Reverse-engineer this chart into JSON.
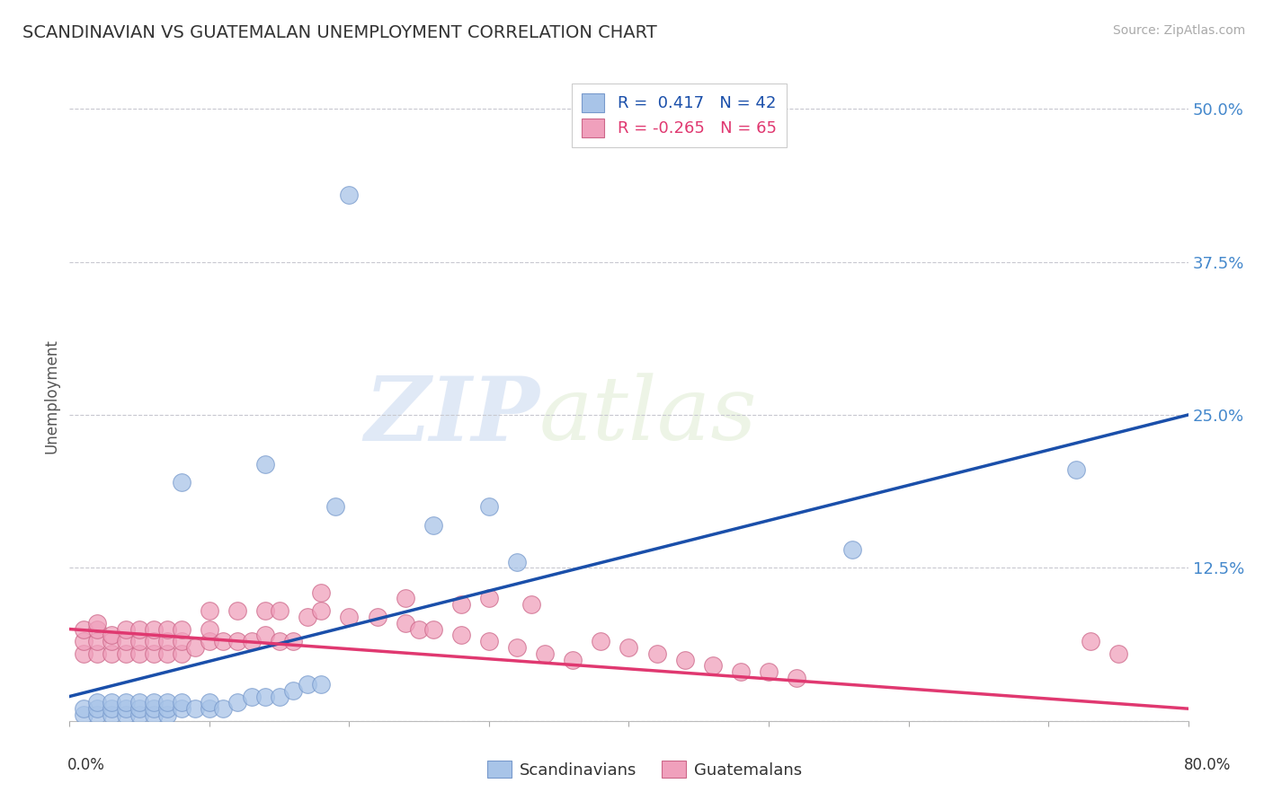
{
  "title": "SCANDINAVIAN VS GUATEMALAN UNEMPLOYMENT CORRELATION CHART",
  "source_text": "Source: ZipAtlas.com",
  "ylabel": "Unemployment",
  "xmin": 0.0,
  "xmax": 0.8,
  "ymin": 0.0,
  "ymax": 0.53,
  "yticks": [
    0.0,
    0.125,
    0.25,
    0.375,
    0.5
  ],
  "ytick_labels": [
    "",
    "12.5%",
    "25.0%",
    "37.5%",
    "50.0%"
  ],
  "grid_color": "#c8c8d0",
  "background_color": "#ffffff",
  "scandinavian_color": "#a8c4e8",
  "guatemalan_color": "#f0a0bc",
  "blue_line_color": "#1a4faa",
  "pink_line_color": "#e03870",
  "blue_R": 0.417,
  "blue_N": 42,
  "pink_R": -0.265,
  "pink_N": 65,
  "watermark_zip": "ZIP",
  "watermark_atlas": "atlas",
  "blue_line_x0": 0.0,
  "blue_line_y0": 0.02,
  "blue_line_x1": 0.8,
  "blue_line_y1": 0.25,
  "pink_line_x0": 0.0,
  "pink_line_y0": 0.075,
  "pink_line_x1": 0.8,
  "pink_line_y1": 0.01,
  "scandinavian_points": [
    [
      0.01,
      0.005
    ],
    [
      0.01,
      0.01
    ],
    [
      0.02,
      0.005
    ],
    [
      0.02,
      0.01
    ],
    [
      0.02,
      0.015
    ],
    [
      0.03,
      0.005
    ],
    [
      0.03,
      0.01
    ],
    [
      0.03,
      0.015
    ],
    [
      0.04,
      0.005
    ],
    [
      0.04,
      0.01
    ],
    [
      0.04,
      0.015
    ],
    [
      0.05,
      0.005
    ],
    [
      0.05,
      0.01
    ],
    [
      0.05,
      0.015
    ],
    [
      0.06,
      0.005
    ],
    [
      0.06,
      0.01
    ],
    [
      0.06,
      0.015
    ],
    [
      0.07,
      0.005
    ],
    [
      0.07,
      0.01
    ],
    [
      0.07,
      0.015
    ],
    [
      0.08,
      0.01
    ],
    [
      0.08,
      0.015
    ],
    [
      0.09,
      0.01
    ],
    [
      0.1,
      0.01
    ],
    [
      0.1,
      0.015
    ],
    [
      0.11,
      0.01
    ],
    [
      0.12,
      0.015
    ],
    [
      0.13,
      0.02
    ],
    [
      0.14,
      0.02
    ],
    [
      0.15,
      0.02
    ],
    [
      0.16,
      0.025
    ],
    [
      0.17,
      0.03
    ],
    [
      0.18,
      0.03
    ],
    [
      0.08,
      0.195
    ],
    [
      0.14,
      0.21
    ],
    [
      0.19,
      0.175
    ],
    [
      0.26,
      0.16
    ],
    [
      0.3,
      0.175
    ],
    [
      0.32,
      0.13
    ],
    [
      0.56,
      0.14
    ],
    [
      0.72,
      0.205
    ],
    [
      0.2,
      0.43
    ]
  ],
  "guatemalan_points": [
    [
      0.01,
      0.055
    ],
    [
      0.01,
      0.065
    ],
    [
      0.01,
      0.075
    ],
    [
      0.02,
      0.055
    ],
    [
      0.02,
      0.065
    ],
    [
      0.02,
      0.075
    ],
    [
      0.02,
      0.08
    ],
    [
      0.03,
      0.055
    ],
    [
      0.03,
      0.065
    ],
    [
      0.03,
      0.07
    ],
    [
      0.04,
      0.055
    ],
    [
      0.04,
      0.065
    ],
    [
      0.04,
      0.075
    ],
    [
      0.05,
      0.055
    ],
    [
      0.05,
      0.065
    ],
    [
      0.05,
      0.075
    ],
    [
      0.06,
      0.055
    ],
    [
      0.06,
      0.065
    ],
    [
      0.06,
      0.075
    ],
    [
      0.07,
      0.055
    ],
    [
      0.07,
      0.065
    ],
    [
      0.07,
      0.075
    ],
    [
      0.08,
      0.055
    ],
    [
      0.08,
      0.065
    ],
    [
      0.08,
      0.075
    ],
    [
      0.09,
      0.06
    ],
    [
      0.1,
      0.065
    ],
    [
      0.1,
      0.075
    ],
    [
      0.11,
      0.065
    ],
    [
      0.12,
      0.065
    ],
    [
      0.13,
      0.065
    ],
    [
      0.14,
      0.07
    ],
    [
      0.15,
      0.065
    ],
    [
      0.16,
      0.065
    ],
    [
      0.1,
      0.09
    ],
    [
      0.12,
      0.09
    ],
    [
      0.14,
      0.09
    ],
    [
      0.15,
      0.09
    ],
    [
      0.17,
      0.085
    ],
    [
      0.18,
      0.09
    ],
    [
      0.2,
      0.085
    ],
    [
      0.22,
      0.085
    ],
    [
      0.24,
      0.08
    ],
    [
      0.25,
      0.075
    ],
    [
      0.26,
      0.075
    ],
    [
      0.28,
      0.07
    ],
    [
      0.3,
      0.065
    ],
    [
      0.32,
      0.06
    ],
    [
      0.34,
      0.055
    ],
    [
      0.36,
      0.05
    ],
    [
      0.18,
      0.105
    ],
    [
      0.24,
      0.1
    ],
    [
      0.28,
      0.095
    ],
    [
      0.3,
      0.1
    ],
    [
      0.33,
      0.095
    ],
    [
      0.38,
      0.065
    ],
    [
      0.4,
      0.06
    ],
    [
      0.42,
      0.055
    ],
    [
      0.44,
      0.05
    ],
    [
      0.46,
      0.045
    ],
    [
      0.48,
      0.04
    ],
    [
      0.5,
      0.04
    ],
    [
      0.52,
      0.035
    ],
    [
      0.73,
      0.065
    ],
    [
      0.75,
      0.055
    ]
  ]
}
